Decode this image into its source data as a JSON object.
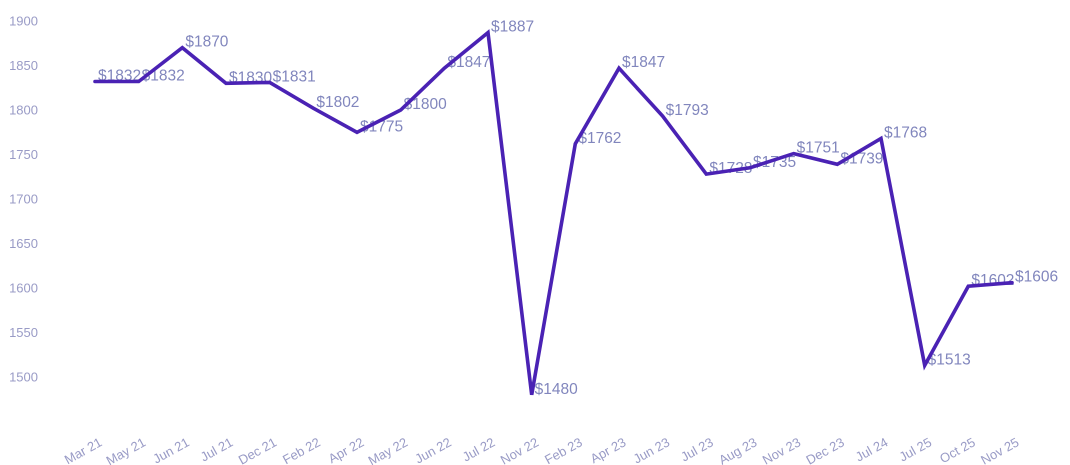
{
  "chart_data": {
    "type": "line",
    "title": "",
    "xlabel": "",
    "ylabel": "",
    "grid": false,
    "legend": false,
    "label_prefix": "$",
    "categories": [
      "Mar 21",
      "May 21",
      "Jun 21",
      "Jul 21",
      "Dec 21",
      "Feb 22",
      "Apr 22",
      "May 22",
      "Jun 22",
      "Jul 22",
      "Nov 22",
      "Feb 23",
      "Apr 23",
      "Jun 23",
      "Jul 23",
      "Aug 23",
      "Nov 23",
      "Dec 23",
      "Jul 24",
      "Jul 25",
      "Oct 25",
      "Nov 25"
    ],
    "values": [
      1832,
      1832,
      1870,
      1830,
      1831,
      1802,
      1775,
      1800,
      1847,
      1887,
      1480,
      1762,
      1847,
      1793,
      1728,
      1735,
      1751,
      1739,
      1768,
      1513,
      1602,
      1606
    ],
    "point_labels": [
      "$1832",
      "$1832",
      "$1870",
      "$1830",
      "$1831",
      "$1802",
      "$1775",
      "$1800",
      "$1847",
      "$1887",
      "$1480",
      "$1762",
      "$1847",
      "$1793",
      "$1728",
      "$1735",
      "$1751",
      "$1739",
      "$1768",
      "$1513",
      "$1602",
      "$1606"
    ],
    "yticks": [
      1900,
      1850,
      1800,
      1750,
      1700,
      1650,
      1600,
      1550,
      1500
    ],
    "ylim": [
      1460,
      1900
    ],
    "colors": {
      "line": "#4a22b4",
      "point_label": "#8186bd",
      "axis_label": "#999bc6",
      "background": "#ffffff"
    }
  }
}
